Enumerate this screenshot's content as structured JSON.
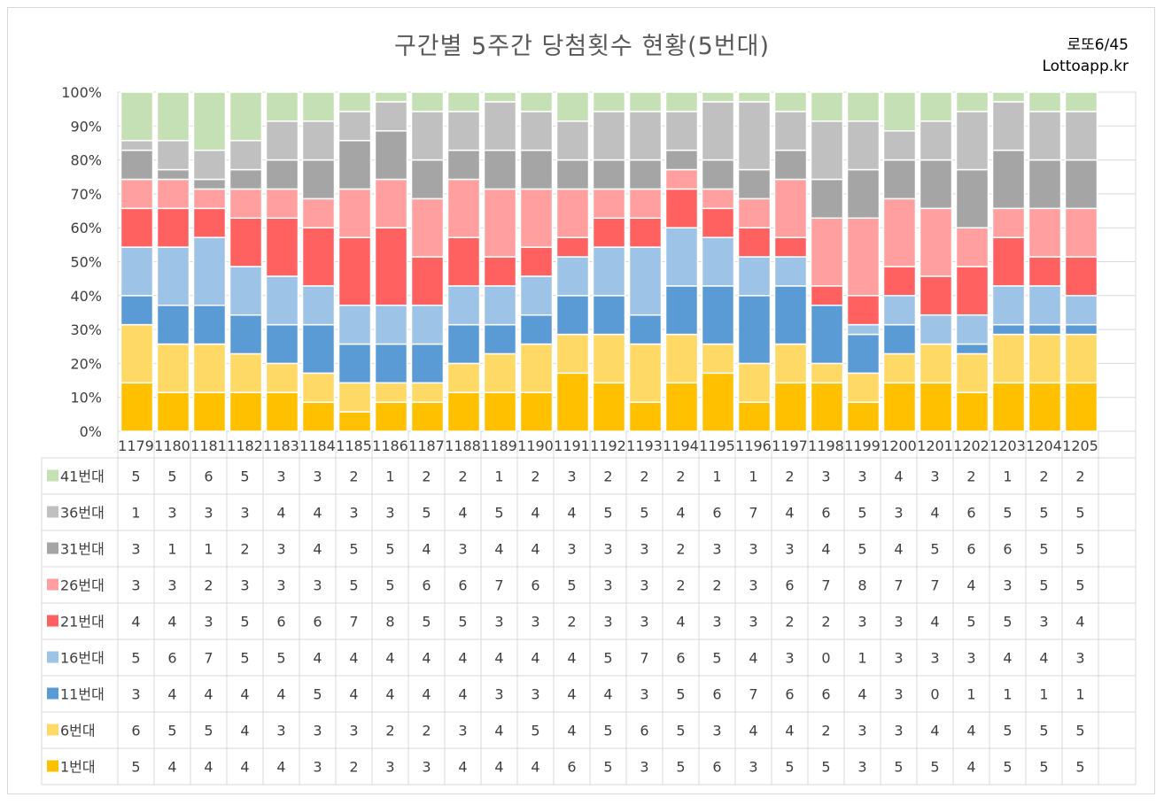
{
  "title": "구간별 5주간 당첨횟수 현황(5번대)",
  "brand": {
    "line1": "로또6/45",
    "line2": "Lottoapp.kr"
  },
  "chart_data": {
    "type": "bar",
    "stacked": "percent",
    "categories": [
      "1179",
      "1180",
      "1181",
      "1182",
      "1183",
      "1184",
      "1185",
      "1186",
      "1187",
      "1188",
      "1189",
      "1190",
      "1191",
      "1192",
      "1193",
      "1194",
      "1195",
      "1196",
      "1197",
      "1198",
      "1199",
      "1200",
      "1201",
      "1202",
      "1203",
      "1204",
      "1205"
    ],
    "y_ticks": [
      "0%",
      "10%",
      "20%",
      "30%",
      "40%",
      "50%",
      "60%",
      "70%",
      "80%",
      "90%",
      "100%"
    ],
    "ylim": [
      0,
      100
    ],
    "series": [
      {
        "name": "1번대",
        "color": "#ffc000",
        "values": [
          5,
          4,
          4,
          4,
          4,
          3,
          2,
          3,
          3,
          4,
          4,
          4,
          6,
          5,
          3,
          5,
          6,
          3,
          5,
          5,
          3,
          5,
          5,
          4,
          5,
          5,
          5
        ]
      },
      {
        "name": "6번대",
        "color": "#ffd966",
        "values": [
          6,
          5,
          5,
          4,
          3,
          3,
          3,
          2,
          2,
          3,
          4,
          5,
          4,
          5,
          6,
          5,
          3,
          4,
          4,
          2,
          3,
          3,
          4,
          4,
          5,
          5,
          5
        ]
      },
      {
        "name": "11번대",
        "color": "#5b9bd5",
        "values": [
          3,
          4,
          4,
          4,
          4,
          5,
          4,
          4,
          4,
          4,
          3,
          3,
          4,
          4,
          3,
          5,
          6,
          7,
          6,
          6,
          4,
          3,
          0,
          1,
          1,
          1,
          1
        ]
      },
      {
        "name": "16번대",
        "color": "#9dc3e6",
        "values": [
          5,
          6,
          7,
          5,
          5,
          4,
          4,
          4,
          4,
          4,
          4,
          4,
          4,
          5,
          7,
          6,
          5,
          4,
          3,
          0,
          1,
          3,
          3,
          3,
          4,
          4,
          3
        ]
      },
      {
        "name": "21번대",
        "color": "#ff6161",
        "values": [
          4,
          4,
          3,
          5,
          6,
          6,
          7,
          8,
          5,
          5,
          3,
          3,
          2,
          3,
          3,
          4,
          3,
          3,
          2,
          2,
          3,
          3,
          4,
          5,
          5,
          3,
          4
        ]
      },
      {
        "name": "26번대",
        "color": "#ff9f9f",
        "values": [
          3,
          3,
          2,
          3,
          3,
          3,
          5,
          5,
          6,
          6,
          7,
          6,
          5,
          3,
          3,
          2,
          2,
          3,
          6,
          7,
          8,
          7,
          7,
          4,
          3,
          5,
          5
        ]
      },
      {
        "name": "31번대",
        "color": "#a5a5a5",
        "values": [
          3,
          1,
          1,
          2,
          3,
          4,
          5,
          5,
          4,
          3,
          4,
          4,
          3,
          3,
          3,
          2,
          3,
          3,
          3,
          4,
          5,
          4,
          5,
          6,
          6,
          5,
          5
        ]
      },
      {
        "name": "36번대",
        "color": "#c0c0c0",
        "values": [
          1,
          3,
          3,
          3,
          4,
          4,
          3,
          3,
          5,
          4,
          5,
          4,
          4,
          5,
          5,
          4,
          6,
          7,
          4,
          6,
          5,
          3,
          4,
          6,
          5,
          5,
          5
        ]
      },
      {
        "name": "41번대",
        "color": "#c5e0b4",
        "values": [
          5,
          5,
          6,
          5,
          3,
          3,
          2,
          1,
          2,
          2,
          1,
          2,
          3,
          2,
          2,
          2,
          1,
          1,
          2,
          3,
          3,
          4,
          3,
          2,
          1,
          2,
          2
        ]
      }
    ]
  }
}
